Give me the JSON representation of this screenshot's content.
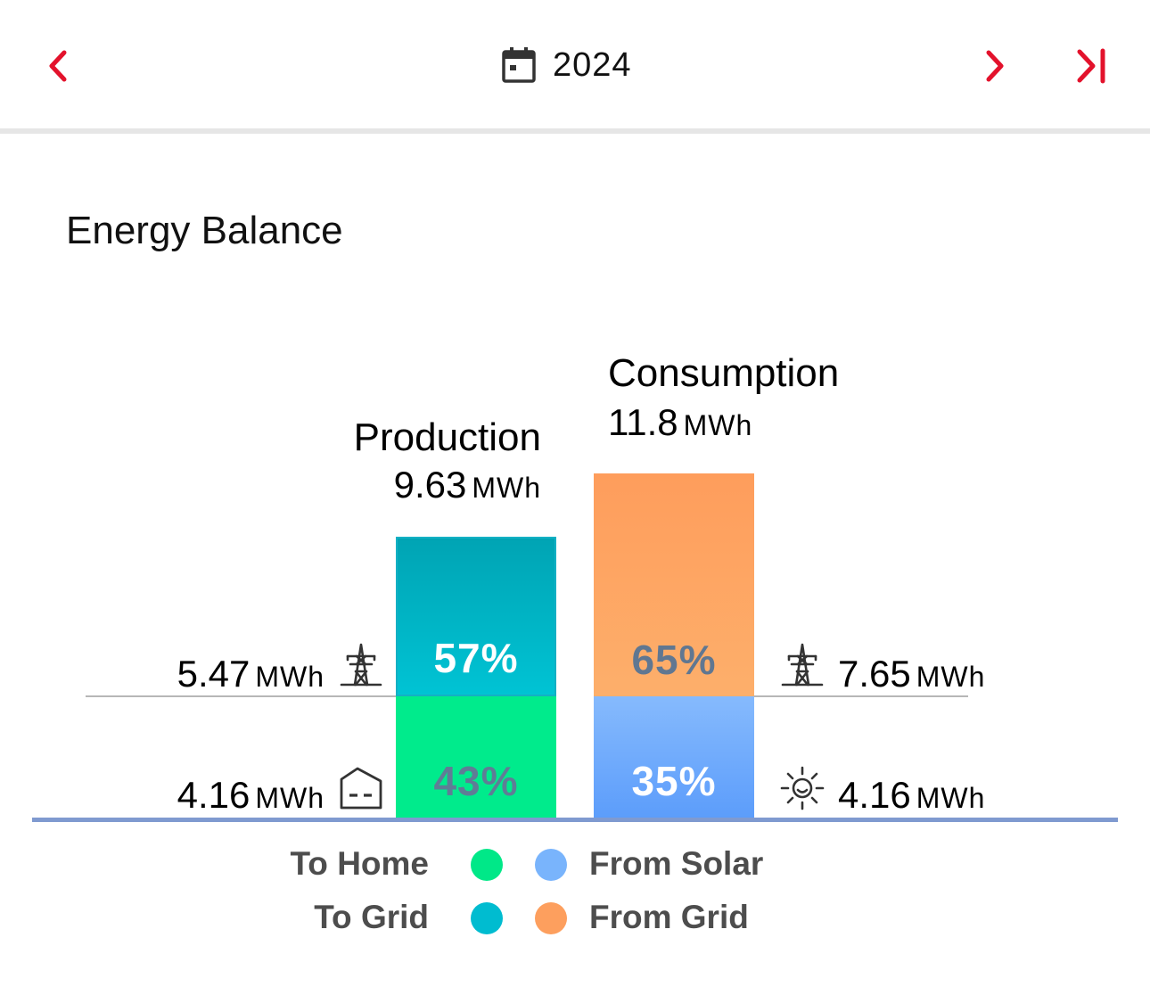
{
  "header": {
    "year": "2024",
    "prev_icon": "chevron-left-icon",
    "next_icon": "chevron-right-icon",
    "last_icon": "skip-to-end-icon",
    "calendar_icon": "calendar-icon",
    "accent_color": "#e3122c"
  },
  "card": {
    "title": "Energy Balance"
  },
  "production": {
    "title": "Production",
    "total_value": "9.63",
    "total_unit": "MWh",
    "to_grid": {
      "percent": "57%",
      "fraction": 0.57,
      "value": "5.47",
      "unit": "MWh",
      "icon": "power-tower-icon"
    },
    "to_home": {
      "percent": "43%",
      "fraction": 0.43,
      "value": "4.16",
      "unit": "MWh",
      "icon": "house-icon"
    }
  },
  "consumption": {
    "title": "Consumption",
    "total_value": "11.8",
    "total_unit": "MWh",
    "from_grid": {
      "percent": "65%",
      "fraction": 0.65,
      "value": "7.65",
      "unit": "MWh",
      "icon": "power-tower-icon"
    },
    "from_solar": {
      "percent": "35%",
      "fraction": 0.35,
      "value": "4.16",
      "unit": "MWh",
      "icon": "sun-icon"
    }
  },
  "legend": {
    "to_home": "To Home",
    "to_grid": "To Grid",
    "from_solar": "From Solar",
    "from_grid": "From Grid"
  },
  "colors": {
    "to_home": "#00e888",
    "to_grid": "#00bcd0",
    "from_solar": "#79b4fc",
    "from_grid": "#fd9f5e",
    "baseline": "#7f9ad0"
  }
}
